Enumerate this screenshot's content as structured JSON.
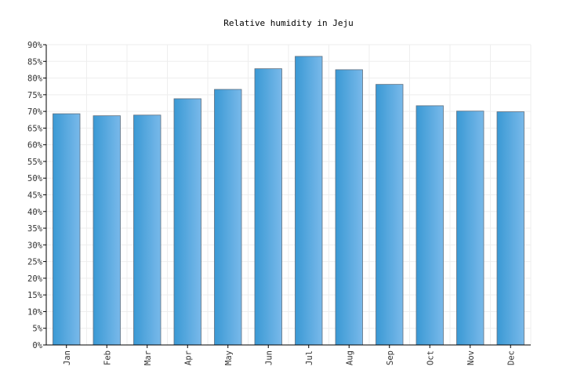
{
  "chart_data": {
    "type": "bar",
    "title": "Relative humidity in Jeju",
    "xlabel": "",
    "ylabel": "",
    "categories": [
      "Jan",
      "Feb",
      "Mar",
      "Apr",
      "May",
      "Jun",
      "Jul",
      "Aug",
      "Sep",
      "Oct",
      "Nov",
      "Dec"
    ],
    "values": [
      69.3,
      68.7,
      68.9,
      73.8,
      76.6,
      82.8,
      86.5,
      82.5,
      78.1,
      71.7,
      70.1,
      69.9
    ],
    "ylim": [
      0,
      90
    ],
    "ytick_step": 5,
    "ytick_suffix": "%",
    "grid": true,
    "legend": "none",
    "colors": {
      "bar_light": "#79b9ea",
      "bar_dark": "#3a99d4",
      "bar_edge": "#5f6f7f",
      "grid": "#eeeeee",
      "axis": "#000000"
    }
  }
}
